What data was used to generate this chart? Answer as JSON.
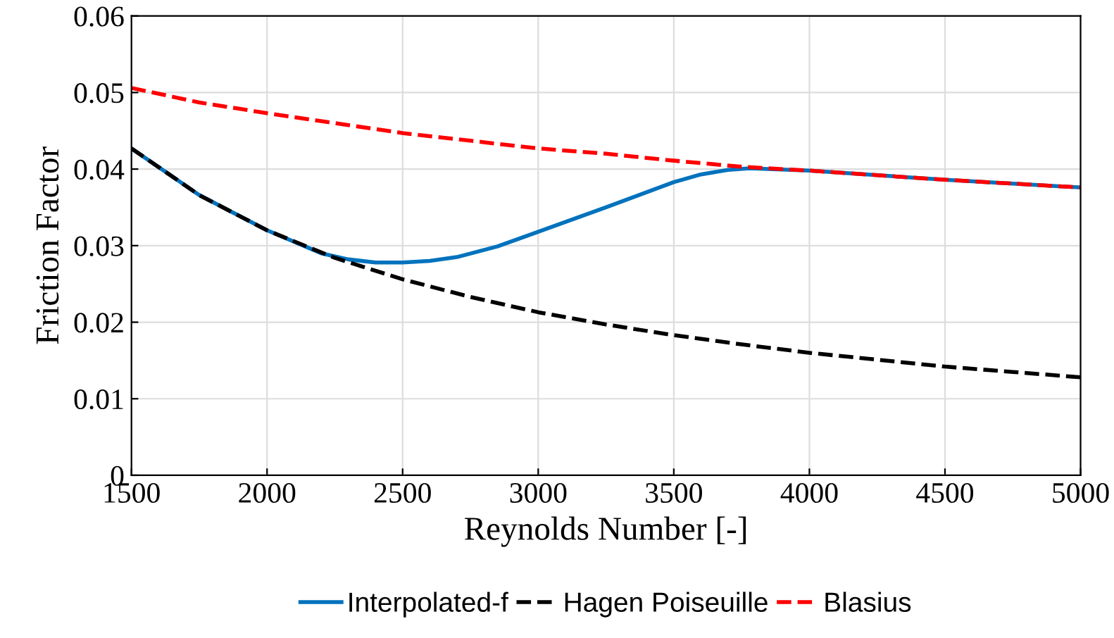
{
  "chart_data": {
    "type": "line",
    "xlabel": "Reynolds Number [-]",
    "ylabel": "Friction Factor",
    "xlim": [
      1500,
      5000
    ],
    "xticks": [
      1500,
      2000,
      2500,
      3000,
      3500,
      4000,
      4500,
      5000
    ],
    "ylim": [
      0,
      0.06
    ],
    "yticks": [
      0,
      0.01,
      0.02,
      0.03,
      0.04,
      0.05,
      0.06
    ],
    "grid": true,
    "legend": "bottom",
    "series": [
      {
        "name": "Interpolated-f",
        "color": "#0072bd",
        "line_style": "solid",
        "x": [
          1500,
          1750,
          2000,
          2200,
          2300,
          2400,
          2500,
          2600,
          2700,
          2850,
          3000,
          3250,
          3500,
          3600,
          3700,
          3780,
          4000,
          4500,
          5000
        ],
        "values": [
          0.0427,
          0.0366,
          0.032,
          0.029,
          0.0282,
          0.0278,
          0.0278,
          0.028,
          0.0285,
          0.0299,
          0.0318,
          0.035,
          0.0383,
          0.0393,
          0.0399,
          0.0401,
          0.0398,
          0.0386,
          0.0376
        ]
      },
      {
        "name": "Hagen Poiseuille",
        "color": "#000000",
        "line_style": "dashed",
        "x": [
          1500,
          1750,
          2000,
          2250,
          2500,
          2750,
          3000,
          3250,
          3500,
          3750,
          4000,
          4250,
          4500,
          4750,
          5000
        ],
        "values": [
          0.0427,
          0.0366,
          0.032,
          0.0284,
          0.0256,
          0.0233,
          0.0213,
          0.0197,
          0.0183,
          0.0171,
          0.016,
          0.0151,
          0.0142,
          0.0135,
          0.0128
        ]
      },
      {
        "name": "Blasius",
        "color": "#ff0000",
        "line_style": "dashed",
        "x": [
          1500,
          1750,
          2000,
          2250,
          2500,
          2750,
          3000,
          3250,
          3500,
          3750,
          4000,
          4250,
          4500,
          4750,
          5000
        ],
        "values": [
          0.0506,
          0.0487,
          0.0473,
          0.046,
          0.0447,
          0.0437,
          0.0427,
          0.042,
          0.0411,
          0.0403,
          0.0398,
          0.0392,
          0.0386,
          0.0381,
          0.0376
        ]
      }
    ]
  }
}
